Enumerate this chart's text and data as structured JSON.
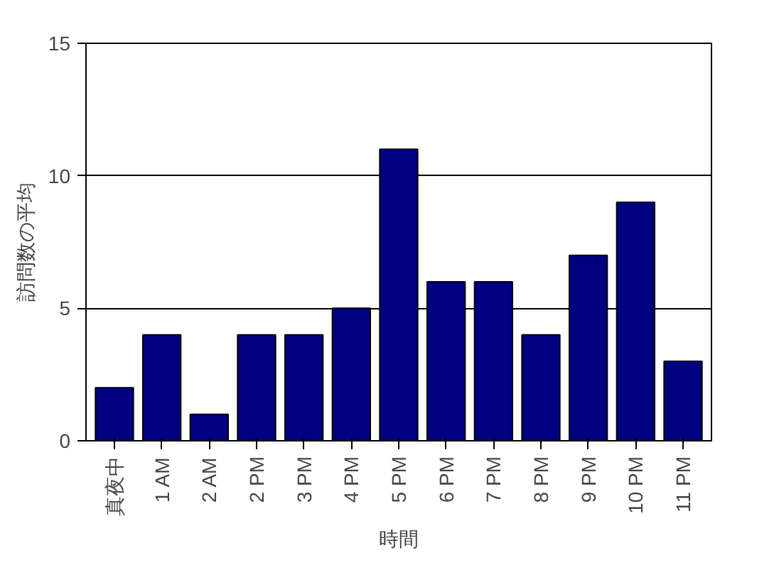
{
  "chart_data": {
    "type": "bar",
    "xlabel": "時間",
    "ylabel": "訪問数の平均",
    "categories": [
      "真夜中",
      "1 AM",
      "2 AM",
      "2 PM",
      "3 PM",
      "4 PM",
      "5 PM",
      "6 PM",
      "7 PM",
      "8 PM",
      "9 PM",
      "10 PM",
      "11 PM"
    ],
    "values": [
      2,
      4,
      1,
      4,
      4,
      5,
      11,
      6,
      6,
      4,
      7,
      9,
      3
    ],
    "color": "#000080",
    "ylim": [
      0,
      15
    ],
    "yticks": [
      0,
      5,
      10,
      15
    ],
    "grid": "y"
  }
}
